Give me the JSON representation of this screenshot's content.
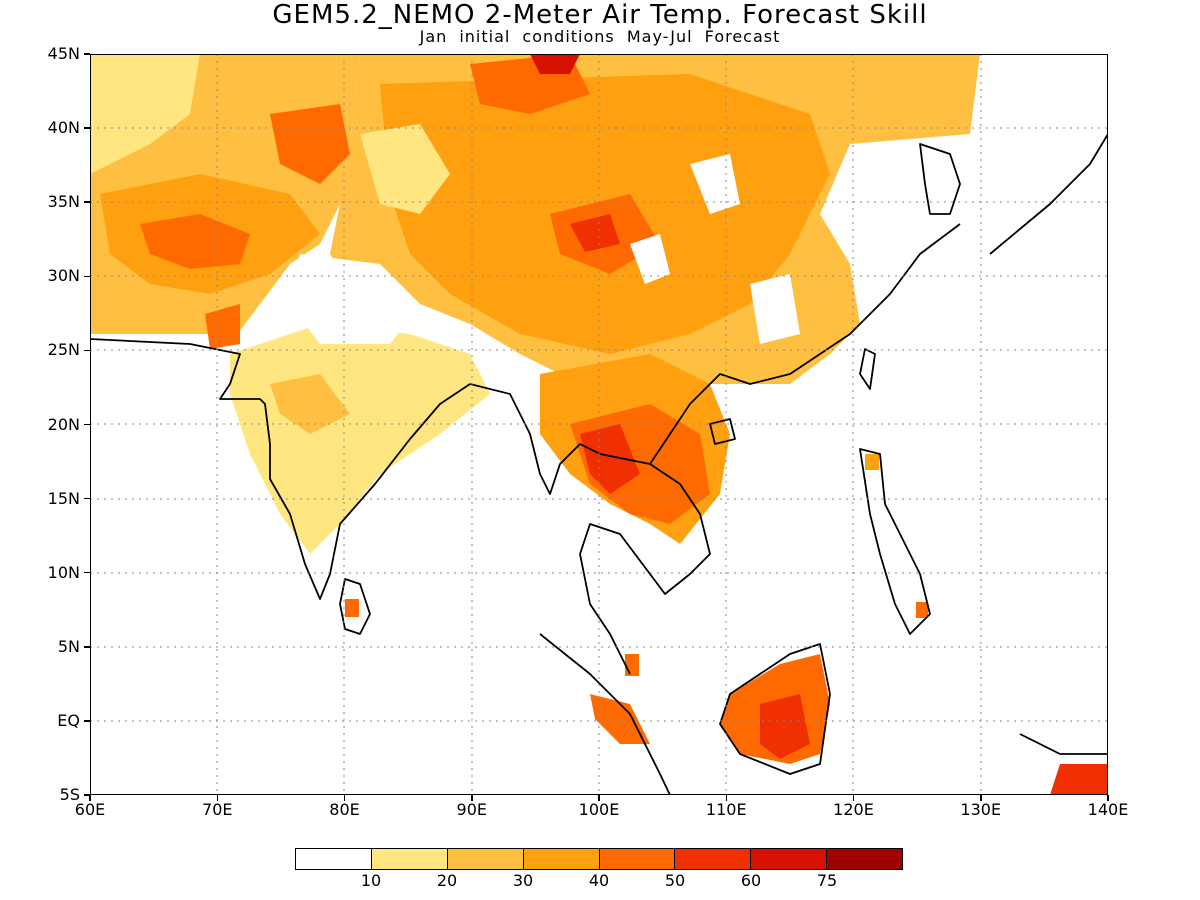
{
  "title": "GEM5.2_NEMO 2-Meter Air Temp. Forecast Skill",
  "subtitle": "Jan initial conditions  May-Jul Forecast",
  "map": {
    "lon_range": [
      60,
      140
    ],
    "lat_range": [
      -5,
      45
    ],
    "y_ticks": [
      "45N",
      "40N",
      "35N",
      "30N",
      "25N",
      "20N",
      "15N",
      "10N",
      "5N",
      "EQ",
      "5S"
    ],
    "x_ticks": [
      "60E",
      "70E",
      "80E",
      "90E",
      "100E",
      "110E",
      "120E",
      "130E",
      "140E"
    ],
    "grid": "dotted"
  },
  "colorbar": {
    "colors": [
      "#ffffff",
      "#ffe680",
      "#ffbf40",
      "#ffa010",
      "#ff6a00",
      "#f03000",
      "#d81000",
      "#a00000"
    ],
    "labels": [
      "10",
      "20",
      "30",
      "40",
      "50",
      "60",
      "75"
    ]
  }
}
